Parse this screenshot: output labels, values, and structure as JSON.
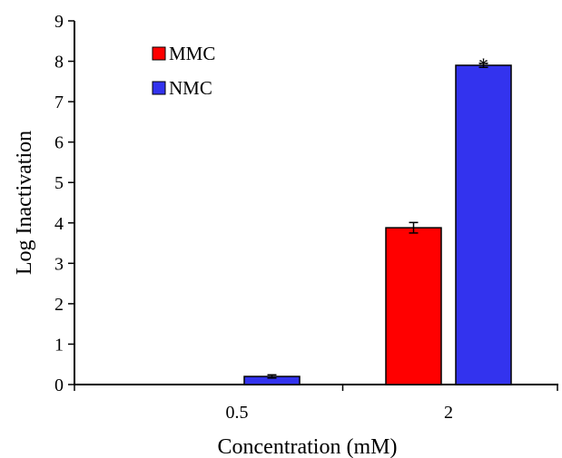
{
  "chart_data": {
    "type": "bar",
    "title": "",
    "xlabel": "Concentration  (mM)",
    "ylabel": "Log Inactivation",
    "categories": [
      "0.5",
      "2"
    ],
    "ylim": [
      0,
      9
    ],
    "yticks": [
      "0",
      "1",
      "2",
      "3",
      "4",
      "5",
      "6",
      "7",
      "8",
      "9"
    ],
    "grid": false,
    "legend_position": "top-left",
    "series": [
      {
        "name": "MMC",
        "color": "#ff0000",
        "values": [
          null,
          3.88
        ],
        "errors": [
          null,
          0.13
        ]
      },
      {
        "name": "NMC",
        "color": "#3333ee",
        "values": [
          0.2,
          7.9
        ],
        "errors": [
          0.04,
          0.05
        ]
      }
    ],
    "annotations": [
      {
        "text": "*",
        "series": "NMC",
        "category": "2"
      }
    ]
  }
}
